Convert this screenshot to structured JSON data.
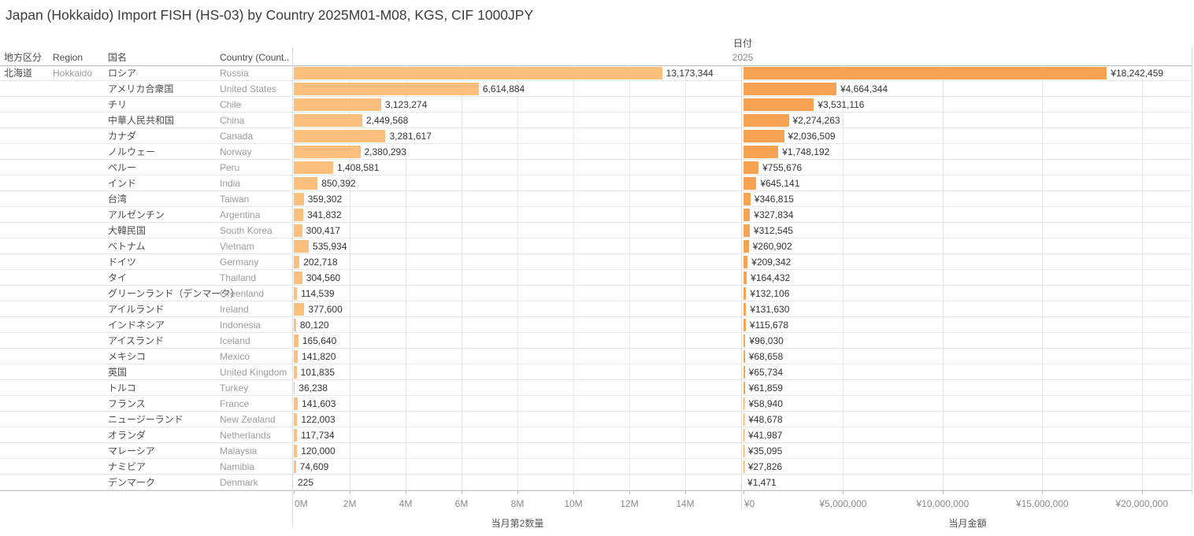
{
  "title": "Japan (Hokkaido) Import FISH (HS-03) by Country 2025M01-M08, KGS, CIF 1000JPY",
  "columns": {
    "region_jp": "地方区分",
    "region_en": "Region",
    "country_jp": "国名",
    "country_en": "Country (Count.."
  },
  "date_header": {
    "field": "日付",
    "year": "2025"
  },
  "region": {
    "jp": "北海道",
    "en": "Hokkaido"
  },
  "colors": {
    "qty_bar": "#fcbe7d",
    "amount_bar": "#f5a352"
  },
  "chart_data": {
    "type": "bar",
    "orientation": "horizontal",
    "title": "Japan (Hokkaido) Import FISH (HS-03) by Country 2025M01-M08, KGS, CIF 1000JPY",
    "grid": true,
    "panes": [
      {
        "name": "qty",
        "axis_title": "当月第2数量",
        "axis_max": 16000000,
        "tick_values": [
          0,
          2000000,
          4000000,
          6000000,
          8000000,
          10000000,
          12000000,
          14000000
        ],
        "tick_labels": [
          "0M",
          "2M",
          "4M",
          "6M",
          "8M",
          "10M",
          "12M",
          "14M"
        ],
        "value_prefix": ""
      },
      {
        "name": "amount",
        "axis_title": "当月金額",
        "axis_max": 22500000,
        "tick_values": [
          0,
          5000000,
          10000000,
          15000000,
          20000000
        ],
        "tick_labels": [
          "¥0",
          "¥5,000,000",
          "¥10,000,000",
          "¥15,000,000",
          "¥20,000,000"
        ],
        "value_prefix": "¥"
      }
    ],
    "rows": [
      {
        "country_jp": "ロシア",
        "country_en": "Russia",
        "qty": 13173344,
        "amount": 18242459
      },
      {
        "country_jp": "アメリカ合衆国",
        "country_en": "United States",
        "qty": 6614884,
        "amount": 4664344
      },
      {
        "country_jp": "チリ",
        "country_en": "Chile",
        "qty": 3123274,
        "amount": 3531116
      },
      {
        "country_jp": "中華人民共和国",
        "country_en": "China",
        "qty": 2449568,
        "amount": 2274263
      },
      {
        "country_jp": "カナダ",
        "country_en": "Canada",
        "qty": 3281617,
        "amount": 2036509
      },
      {
        "country_jp": "ノルウェー",
        "country_en": "Norway",
        "qty": 2380293,
        "amount": 1748192
      },
      {
        "country_jp": "ペルー",
        "country_en": "Peru",
        "qty": 1408581,
        "amount": 755676
      },
      {
        "country_jp": "インド",
        "country_en": "India",
        "qty": 850392,
        "amount": 645141
      },
      {
        "country_jp": "台湾",
        "country_en": "Taiwan",
        "qty": 359302,
        "amount": 346815
      },
      {
        "country_jp": "アルゼンチン",
        "country_en": "Argentina",
        "qty": 341832,
        "amount": 327834
      },
      {
        "country_jp": "大韓民国",
        "country_en": "South Korea",
        "qty": 300417,
        "amount": 312545
      },
      {
        "country_jp": "ベトナム",
        "country_en": "Vietnam",
        "qty": 535934,
        "amount": 260902
      },
      {
        "country_jp": "ドイツ",
        "country_en": "Germany",
        "qty": 202718,
        "amount": 209342
      },
      {
        "country_jp": "タイ",
        "country_en": "Thailand",
        "qty": 304560,
        "amount": 164432
      },
      {
        "country_jp": "グリーンランド（デンマーク）",
        "country_en": "Greenland",
        "qty": 114539,
        "amount": 132106
      },
      {
        "country_jp": "アイルランド",
        "country_en": "Ireland",
        "qty": 377600,
        "amount": 131630
      },
      {
        "country_jp": "インドネシア",
        "country_en": "Indonesia",
        "qty": 80120,
        "amount": 115678
      },
      {
        "country_jp": "アイスランド",
        "country_en": "Iceland",
        "qty": 165640,
        "amount": 96030
      },
      {
        "country_jp": "メキシコ",
        "country_en": "Mexico",
        "qty": 141820,
        "amount": 68658
      },
      {
        "country_jp": "英国",
        "country_en": "United Kingdom",
        "qty": 101835,
        "amount": 65734
      },
      {
        "country_jp": "トルコ",
        "country_en": "Turkey",
        "qty": 36238,
        "amount": 61859
      },
      {
        "country_jp": "フランス",
        "country_en": "France",
        "qty": 141603,
        "amount": 58940
      },
      {
        "country_jp": "ニュージーランド",
        "country_en": "New Zealand",
        "qty": 122003,
        "amount": 48678
      },
      {
        "country_jp": "オランダ",
        "country_en": "Netherlands",
        "qty": 117734,
        "amount": 41987
      },
      {
        "country_jp": "マレーシア",
        "country_en": "Malaysia",
        "qty": 120000,
        "amount": 35095
      },
      {
        "country_jp": "ナミビア",
        "country_en": "Namibia",
        "qty": 74609,
        "amount": 27826
      },
      {
        "country_jp": "デンマーク",
        "country_en": "Denmark",
        "qty": 225,
        "amount": 1471
      }
    ]
  }
}
